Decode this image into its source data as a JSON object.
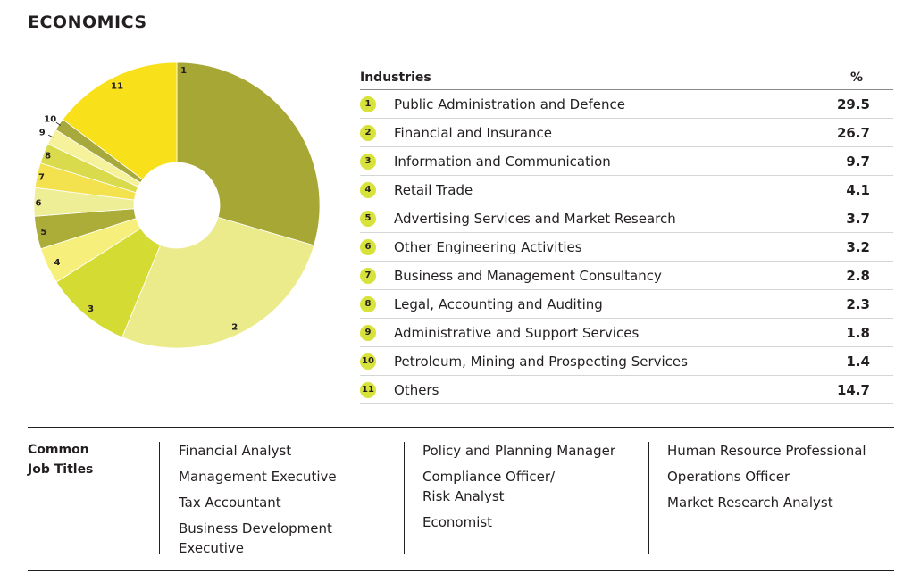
{
  "page": {
    "title": "ECONOMICS"
  },
  "colors": {
    "badge": "#d7e23b",
    "slice_colors": [
      "#a6a734",
      "#eceb8b",
      "#d4dc33",
      "#f6ef7c",
      "#acac38",
      "#eeee96",
      "#f3e24e",
      "#d9db4c",
      "#f6f29b",
      "#a7a93d",
      "#f8e01a"
    ]
  },
  "table": {
    "header_industry": "Industries",
    "header_pct": "%",
    "rows": [
      {
        "num": "1",
        "name": "Public Administration and Defence",
        "value": "29.5"
      },
      {
        "num": "2",
        "name": "Financial and Insurance",
        "value": "26.7"
      },
      {
        "num": "3",
        "name": "Information and Communication",
        "value": "9.7"
      },
      {
        "num": "4",
        "name": "Retail Trade",
        "value": "4.1"
      },
      {
        "num": "5",
        "name": "Advertising Services and Market Research",
        "value": "3.7"
      },
      {
        "num": "6",
        "name": "Other Engineering Activities",
        "value": "3.2"
      },
      {
        "num": "7",
        "name": "Business and Management Consultancy",
        "value": "2.8"
      },
      {
        "num": "8",
        "name": "Legal, Accounting and Auditing",
        "value": "2.3"
      },
      {
        "num": "9",
        "name": "Administrative and Support Services",
        "value": "1.8"
      },
      {
        "num": "10",
        "name": "Petroleum, Mining and Prospecting Services",
        "value": "1.4"
      },
      {
        "num": "11",
        "name": "Others",
        "value": "14.7"
      }
    ]
  },
  "jobs": {
    "label_line1": "Common",
    "label_line2": "Job Titles",
    "col1": [
      "Financial Analyst",
      "Management Executive",
      "Tax Accountant",
      "Business Development",
      "Executive"
    ],
    "col2": [
      "Policy and Planning Manager",
      "Compliance Officer/",
      "Risk Analyst",
      "Economist"
    ],
    "col3": [
      "Human Resource Professional",
      "Operations Officer",
      "Market Research Analyst"
    ]
  },
  "chart_data": {
    "type": "pie",
    "donut": true,
    "categories": [
      "1",
      "2",
      "3",
      "4",
      "5",
      "6",
      "7",
      "8",
      "9",
      "10",
      "11"
    ],
    "values": [
      29.5,
      26.7,
      9.7,
      4.1,
      3.7,
      3.2,
      2.8,
      2.3,
      1.8,
      1.4,
      14.7
    ]
  }
}
